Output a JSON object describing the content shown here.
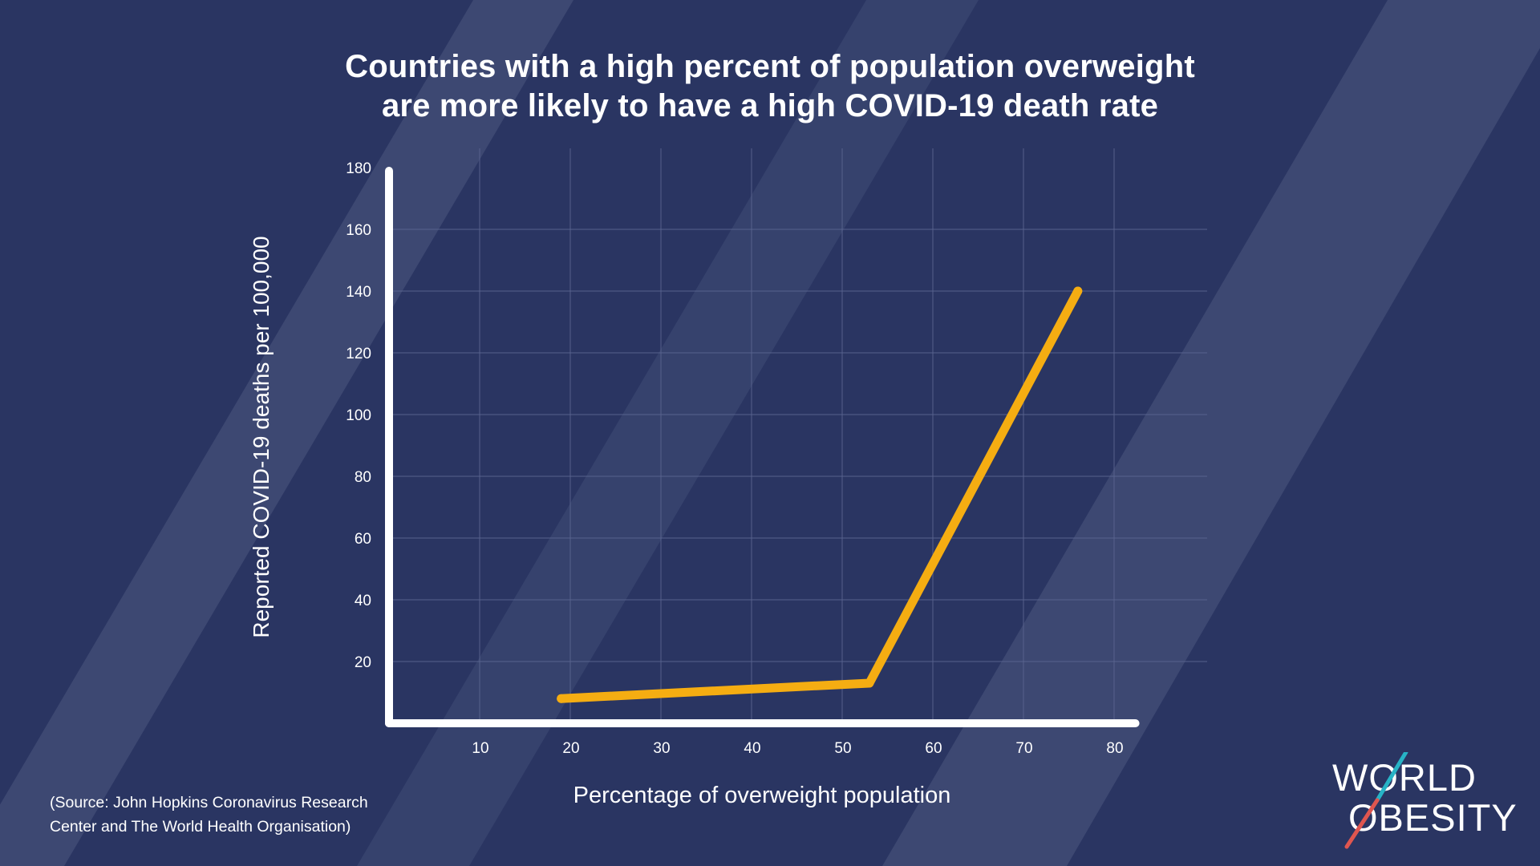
{
  "title": {
    "line1": "Countries with a high percent of population overweight",
    "line2": "are more likely to have a high COVID-19 death rate"
  },
  "source_note": {
    "line1": "(Source: John Hopkins Coronavirus Research",
    "line2": "Center and The World Health Organisation)"
  },
  "logo": {
    "line1": "WORLD",
    "line2": "OBESITY"
  },
  "colors": {
    "background": "#2a3562",
    "background_stripe": "#3d4872",
    "line": "#f5ad12",
    "axis": "#ffffff",
    "grid": "#5a6590",
    "logo_slash_teal": "#27b3c6",
    "logo_slash_red": "#e0564f"
  },
  "chart_data": {
    "type": "line",
    "title": "Countries with a high percent of population overweight are more likely to have a high COVID-19 death rate",
    "xlabel": "Percentage of overweight population",
    "ylabel": "Reported COVID-19 deaths per 100,000",
    "xlim": [
      0,
      82
    ],
    "ylim": [
      0,
      180
    ],
    "x_ticks": [
      10,
      20,
      30,
      40,
      50,
      60,
      70,
      80
    ],
    "y_ticks": [
      20,
      40,
      60,
      80,
      100,
      120,
      140,
      160,
      180
    ],
    "grid": true,
    "legend": "none",
    "series": [
      {
        "x": [
          19,
          53,
          76
        ],
        "y": [
          8,
          13,
          140
        ]
      }
    ]
  }
}
